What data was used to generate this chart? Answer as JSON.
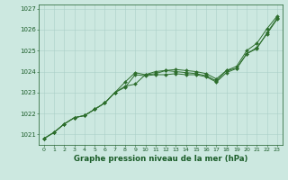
{
  "title": "Graphe pression niveau de la mer (hPa)",
  "ylabel_ticks": [
    1021,
    1022,
    1023,
    1024,
    1025,
    1026,
    1027
  ],
  "ylim": [
    1020.5,
    1027.2
  ],
  "xlim": [
    -0.5,
    23.5
  ],
  "xticks": [
    0,
    1,
    2,
    3,
    4,
    5,
    6,
    7,
    8,
    9,
    10,
    11,
    12,
    13,
    14,
    15,
    16,
    17,
    18,
    19,
    20,
    21,
    22,
    23
  ],
  "bg_color": "#cce8e0",
  "grid_color": "#aacfc8",
  "line_color": "#2d6e2d",
  "text_color": "#1a5c28",
  "series1": [
    1020.8,
    1021.1,
    1021.5,
    1021.8,
    1021.9,
    1022.2,
    1022.5,
    1023.0,
    1023.5,
    1023.95,
    1023.85,
    1024.0,
    1024.05,
    1024.1,
    1024.05,
    1024.0,
    1023.9,
    1023.65,
    1024.05,
    1024.25,
    1025.0,
    1025.35,
    1026.05,
    1026.65
  ],
  "series2": [
    1020.8,
    1021.1,
    1021.5,
    1021.8,
    1021.9,
    1022.2,
    1022.5,
    1023.0,
    1023.3,
    1023.4,
    1023.85,
    1023.9,
    1024.05,
    1024.0,
    1023.95,
    1023.9,
    1023.8,
    1023.55,
    1024.05,
    1024.15,
    1024.85,
    1025.1,
    1025.85,
    1026.55
  ],
  "series3": [
    1020.8,
    1021.1,
    1021.5,
    1021.8,
    1021.9,
    1022.2,
    1022.5,
    1023.0,
    1023.25,
    1023.85,
    1023.8,
    1023.85,
    1023.85,
    1023.9,
    1023.85,
    1023.85,
    1023.75,
    1023.5,
    1023.95,
    1024.15,
    1024.85,
    1025.15,
    1025.8,
    1026.5
  ]
}
